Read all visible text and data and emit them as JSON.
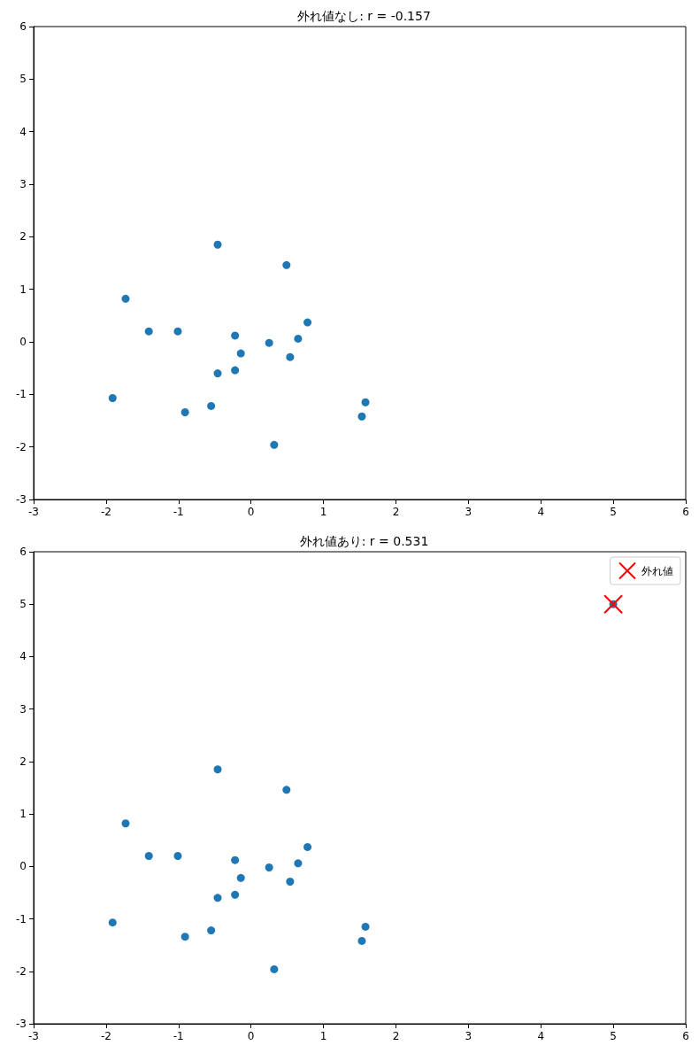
{
  "chart_data": [
    {
      "type": "scatter",
      "title": "外れ値なし: r = -0.157",
      "xlim": [
        -3,
        6
      ],
      "ylim": [
        -3,
        6
      ],
      "xticks": [
        -3,
        -2,
        -1,
        0,
        1,
        2,
        3,
        4,
        5,
        6
      ],
      "yticks": [
        -3,
        -2,
        -1,
        0,
        1,
        2,
        3,
        4,
        5,
        6
      ],
      "grid": false,
      "legend": false,
      "marker": "circle",
      "series": [
        {
          "color": "#1f77b4",
          "x": [
            -0.46,
            0.49,
            -1.73,
            -1.41,
            -1.01,
            -0.22,
            -0.14,
            0.25,
            0.65,
            0.78,
            0.54,
            -0.46,
            -0.22,
            -1.91,
            -0.91,
            -0.55,
            1.58,
            1.53,
            0.32
          ],
          "values": [
            1.85,
            1.46,
            0.82,
            0.2,
            0.2,
            0.12,
            -0.22,
            -0.02,
            0.06,
            0.37,
            -0.29,
            -0.6,
            -0.54,
            -1.07,
            -1.34,
            -1.22,
            -1.15,
            -1.42,
            -1.96
          ]
        }
      ]
    },
    {
      "type": "scatter",
      "title": "外れ値あり: r = 0.531",
      "xlim": [
        -3,
        6
      ],
      "ylim": [
        -3,
        6
      ],
      "xticks": [
        -3,
        -2,
        -1,
        0,
        1,
        2,
        3,
        4,
        5,
        6
      ],
      "yticks": [
        -3,
        -2,
        -1,
        0,
        1,
        2,
        3,
        4,
        5,
        6
      ],
      "grid": false,
      "legend": "top right",
      "marker": "circle",
      "series": [
        {
          "color": "#1f77b4",
          "x": [
            -0.46,
            0.49,
            -1.73,
            -1.41,
            -1.01,
            -0.22,
            -0.14,
            0.25,
            0.65,
            0.78,
            0.54,
            -0.46,
            -0.22,
            -1.91,
            -0.91,
            -0.55,
            1.58,
            1.53,
            0.32,
            5
          ],
          "values": [
            1.85,
            1.46,
            0.82,
            0.2,
            0.2,
            0.12,
            -0.22,
            -0.02,
            0.06,
            0.37,
            -0.29,
            -0.6,
            -0.54,
            -1.07,
            -1.34,
            -1.22,
            -1.15,
            -1.42,
            -1.96,
            5
          ]
        },
        {
          "name": "外れ値",
          "color": "#ff0000",
          "marker": "cross",
          "x": [
            5
          ],
          "values": [
            5
          ]
        }
      ]
    }
  ]
}
